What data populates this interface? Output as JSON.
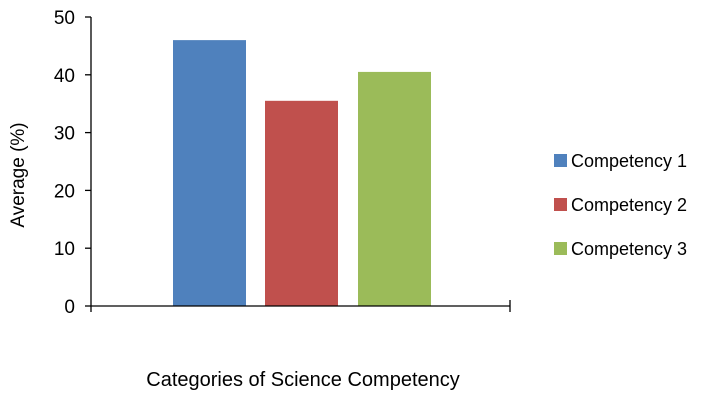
{
  "chart_data": {
    "type": "bar",
    "title": "",
    "xlabel": "Categories of Science Competency",
    "ylabel": "Average (%)",
    "ylim": [
      0,
      50
    ],
    "yticks": [
      0,
      10,
      20,
      30,
      40,
      50
    ],
    "grid": false,
    "legend_position": "right",
    "series": [
      {
        "name": "Competency 1",
        "value": 46,
        "color": "#4f81bd"
      },
      {
        "name": "Competency 2",
        "value": 35.5,
        "color": "#c0504d"
      },
      {
        "name": "Competency 3",
        "value": 40.5,
        "color": "#9bbb59"
      }
    ]
  }
}
